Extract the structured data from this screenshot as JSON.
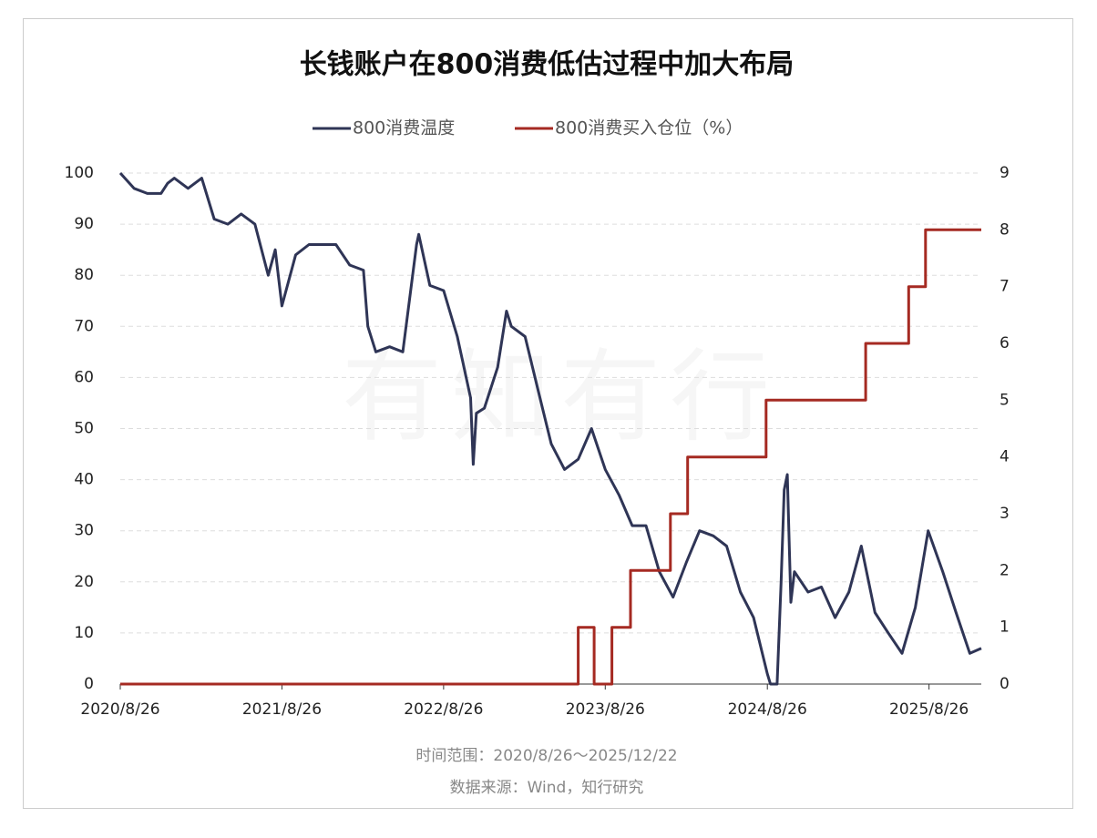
{
  "chart_data": {
    "type": "line",
    "title": "长钱账户在800消费低估过程中加大布局",
    "watermark": "有知有行",
    "note_range": "时间范围：2020/8/26～2025/12/22",
    "note_source": "数据来源：Wind，知行研究",
    "xlim": [
      "2020/8/26",
      "2025/12/22"
    ],
    "xticks": [
      "2020/8/26",
      "2021/8/26",
      "2022/8/26",
      "2023/8/26",
      "2024/8/26",
      "2025/8/26"
    ],
    "ylim": [
      0,
      100
    ],
    "yticks": [
      0,
      10,
      20,
      30,
      40,
      50,
      60,
      70,
      80,
      90,
      100
    ],
    "y2lim": [
      0,
      9
    ],
    "y2ticks": [
      0,
      1,
      2,
      3,
      4,
      5,
      6,
      7,
      8,
      9
    ],
    "grid": true,
    "series": [
      {
        "name": "800消费温度",
        "color": "#2f3556",
        "x": [
          "2020/8/26",
          "2020/9/26",
          "2020/10/26",
          "2020/11/26",
          "2020/12/11",
          "2020/12/26",
          "2021/1/26",
          "2021/2/26",
          "2021/3/26",
          "2021/4/26",
          "2021/5/26",
          "2021/6/26",
          "2021/7/26",
          "2021/8/11",
          "2021/8/26",
          "2021/9/26",
          "2021/10/26",
          "2021/11/26",
          "2021/12/26",
          "2022/1/26",
          "2022/2/26",
          "2022/3/8",
          "2022/3/26",
          "2022/4/26",
          "2022/5/26",
          "2022/6/26",
          "2022/7/1",
          "2022/7/26",
          "2022/8/26",
          "2022/9/26",
          "2022/10/26",
          "2022/11/1",
          "2022/11/8",
          "2022/11/26",
          "2022/12/26",
          "2023/1/15",
          "2023/1/26",
          "2023/2/26",
          "2023/3/26",
          "2023/4/26",
          "2023/5/26",
          "2023/6/26",
          "2023/7/26",
          "2023/8/26",
          "2023/9/26",
          "2023/10/26",
          "2023/11/26",
          "2023/12/26",
          "2024/1/26",
          "2024/2/26",
          "2024/3/26",
          "2024/4/26",
          "2024/5/26",
          "2024/6/26",
          "2024/7/26",
          "2024/8/26",
          "2024/9/2",
          "2024/9/17",
          "2024/9/26",
          "2024/10/3",
          "2024/10/10",
          "2024/10/18",
          "2024/10/26",
          "2024/11/26",
          "2024/12/26",
          "2025/1/26",
          "2025/2/26",
          "2025/3/26",
          "2025/4/26",
          "2025/5/26",
          "2025/6/26",
          "2025/7/26",
          "2025/8/24",
          "2025/9/26",
          "2025/10/26",
          "2025/11/26",
          "2025/12/22"
        ],
        "values": [
          100,
          97,
          96,
          96,
          98,
          99,
          97,
          99,
          91,
          90,
          92,
          90,
          80,
          85,
          74,
          84,
          86,
          86,
          86,
          82,
          81,
          70,
          65,
          66,
          65,
          86,
          88,
          78,
          77,
          68,
          56,
          43,
          53,
          54,
          62,
          73,
          70,
          68,
          58,
          47,
          42,
          44,
          50,
          42,
          37,
          31,
          31,
          22,
          17,
          24,
          30,
          29,
          27,
          18,
          13,
          2,
          0,
          0,
          20,
          38,
          41,
          16,
          22,
          18,
          19,
          13,
          18,
          27,
          14,
          10,
          6,
          15,
          30,
          22,
          14,
          6,
          7
        ]
      },
      {
        "name": "800消费买入仓位（%）",
        "color": "#a52a22",
        "axis": "y2",
        "x": [
          "2020/8/26",
          "2023/6/26",
          "2023/6/26",
          "2023/8/1",
          "2023/8/1",
          "2023/9/10",
          "2023/9/10",
          "2023/10/22",
          "2023/10/22",
          "2024/1/20",
          "2024/1/20",
          "2024/2/28",
          "2024/2/28",
          "2024/8/23",
          "2024/8/23",
          "2025/4/5",
          "2025/4/5",
          "2025/7/11",
          "2025/7/11",
          "2025/8/18",
          "2025/8/18",
          "2025/12/22"
        ],
        "values": [
          0,
          0,
          1,
          1,
          0,
          0,
          1,
          1,
          2,
          2,
          3,
          3,
          4,
          4,
          5,
          5,
          6,
          6,
          7,
          7,
          8,
          8
        ]
      }
    ]
  }
}
